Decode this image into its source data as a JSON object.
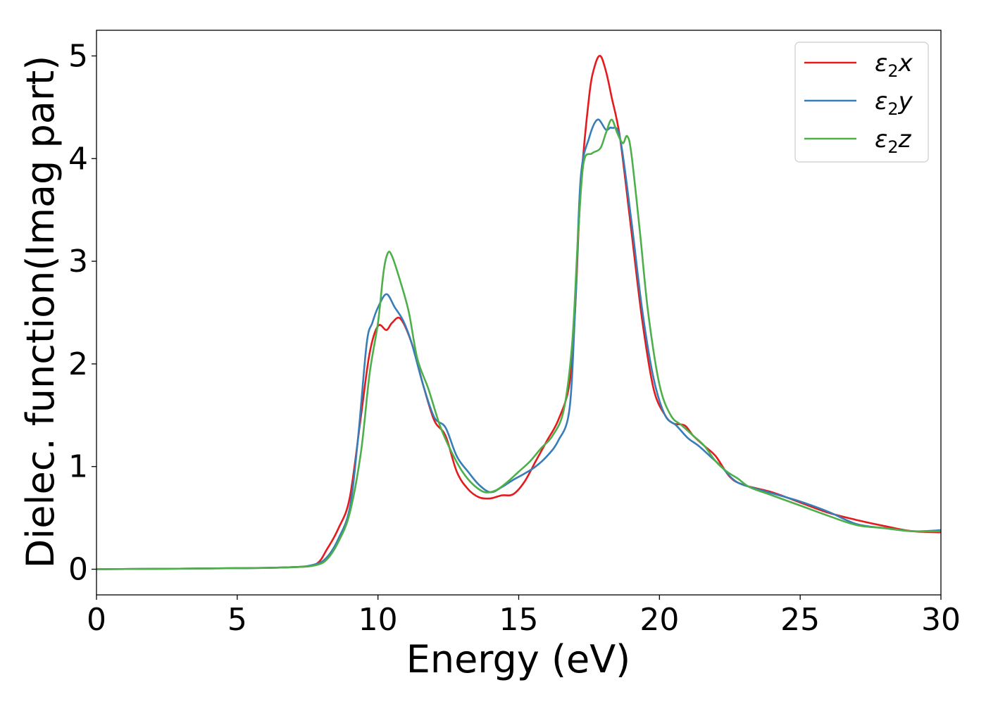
{
  "chart_data": {
    "type": "line",
    "title": "",
    "xlabel": "Energy (eV)",
    "ylabel": "Dielec. function(Imag part)",
    "xlim": [
      0,
      30
    ],
    "ylim": [
      -0.25,
      5.25
    ],
    "xticks": [
      0,
      5,
      10,
      15,
      20,
      25,
      30
    ],
    "xtick_labels": [
      "0",
      "5",
      "10",
      "15",
      "20",
      "25",
      "30"
    ],
    "yticks": [
      0,
      1,
      2,
      3,
      4,
      5
    ],
    "ytick_labels": [
      "0",
      "1",
      "2",
      "3",
      "4",
      "5"
    ],
    "grid": false,
    "legend_position": "top-right",
    "series": [
      {
        "name": "ε₂x",
        "legend_main": "ε",
        "legend_sub": "2",
        "legend_suffix": "x",
        "color": "#e41a1c",
        "x": [
          0,
          5,
          7,
          7.8,
          8.2,
          8.6,
          9.0,
          9.4,
          9.7,
          10.0,
          10.3,
          10.5,
          10.8,
          11.2,
          11.6,
          12.0,
          12.4,
          12.8,
          13.2,
          13.6,
          14.0,
          14.4,
          14.8,
          15.2,
          15.6,
          16.0,
          16.4,
          16.8,
          17.0,
          17.2,
          17.5,
          17.7,
          17.9,
          18.1,
          18.3,
          18.6,
          19.0,
          19.4,
          19.8,
          20.2,
          20.5,
          20.9,
          21.2,
          21.6,
          22.0,
          22.5,
          23.0,
          24.0,
          25.0,
          26.0,
          27.0,
          28.0,
          29.0,
          30.0
        ],
        "y": [
          0,
          0.01,
          0.02,
          0.05,
          0.2,
          0.4,
          0.7,
          1.5,
          2.1,
          2.37,
          2.33,
          2.4,
          2.44,
          2.2,
          1.8,
          1.45,
          1.3,
          0.95,
          0.78,
          0.7,
          0.69,
          0.72,
          0.73,
          0.85,
          1.05,
          1.25,
          1.45,
          1.8,
          2.5,
          3.7,
          4.6,
          4.9,
          5.0,
          4.85,
          4.6,
          4.2,
          3.3,
          2.4,
          1.75,
          1.5,
          1.42,
          1.4,
          1.3,
          1.2,
          1.1,
          0.9,
          0.82,
          0.75,
          0.65,
          0.55,
          0.48,
          0.42,
          0.37,
          0.36
        ]
      },
      {
        "name": "ε₂y",
        "legend_main": "ε",
        "legend_sub": "2",
        "legend_suffix": "y",
        "color": "#377eb8",
        "x": [
          0,
          5,
          7,
          7.8,
          8.2,
          8.6,
          9.0,
          9.3,
          9.6,
          9.8,
          10.0,
          10.3,
          10.6,
          10.9,
          11.2,
          11.6,
          12.0,
          12.4,
          12.8,
          13.2,
          13.6,
          14.0,
          14.4,
          14.8,
          15.2,
          15.6,
          16.0,
          16.4,
          16.8,
          17.0,
          17.2,
          17.5,
          17.8,
          18.1,
          18.3,
          18.6,
          19.0,
          19.4,
          19.8,
          20.2,
          20.6,
          21.0,
          21.4,
          21.8,
          22.2,
          22.6,
          23.0,
          24.0,
          25.0,
          26.0,
          27.0,
          28.0,
          29.0,
          30.0
        ],
        "y": [
          0,
          0.01,
          0.02,
          0.05,
          0.12,
          0.3,
          0.6,
          1.3,
          2.2,
          2.4,
          2.55,
          2.68,
          2.55,
          2.42,
          2.2,
          1.8,
          1.48,
          1.38,
          1.1,
          0.95,
          0.82,
          0.75,
          0.8,
          0.87,
          0.93,
          1.0,
          1.1,
          1.25,
          1.55,
          2.5,
          3.8,
          4.2,
          4.38,
          4.28,
          4.3,
          4.2,
          3.4,
          2.5,
          1.85,
          1.5,
          1.4,
          1.28,
          1.2,
          1.1,
          1.0,
          0.88,
          0.82,
          0.74,
          0.66,
          0.56,
          0.44,
          0.4,
          0.37,
          0.38
        ]
      },
      {
        "name": "ε₂z",
        "legend_main": "ε",
        "legend_sub": "2",
        "legend_suffix": "z",
        "color": "#4daf4a",
        "x": [
          0,
          5,
          7,
          7.8,
          8.2,
          8.6,
          9.0,
          9.4,
          9.7,
          10.0,
          10.2,
          10.35,
          10.5,
          10.8,
          11.1,
          11.4,
          11.8,
          12.2,
          12.6,
          13.0,
          13.4,
          13.8,
          14.2,
          14.6,
          15.0,
          15.4,
          15.8,
          16.2,
          16.6,
          16.9,
          17.1,
          17.3,
          17.6,
          17.9,
          18.1,
          18.3,
          18.5,
          18.7,
          18.85,
          19.0,
          19.3,
          19.6,
          20.0,
          20.4,
          20.8,
          21.2,
          21.6,
          22.0,
          22.4,
          22.8,
          23.2,
          24.0,
          25.0,
          26.0,
          27.0,
          28.0,
          29.0,
          30.0
        ],
        "y": [
          0,
          0.01,
          0.02,
          0.04,
          0.1,
          0.27,
          0.55,
          1.15,
          1.9,
          2.4,
          2.9,
          3.08,
          3.05,
          2.8,
          2.5,
          2.05,
          1.75,
          1.4,
          1.15,
          0.95,
          0.82,
          0.75,
          0.77,
          0.85,
          0.95,
          1.05,
          1.18,
          1.3,
          1.55,
          2.2,
          3.2,
          3.95,
          4.05,
          4.1,
          4.25,
          4.38,
          4.25,
          4.15,
          4.22,
          4.05,
          3.3,
          2.5,
          1.8,
          1.5,
          1.4,
          1.3,
          1.2,
          1.05,
          0.95,
          0.88,
          0.8,
          0.72,
          0.62,
          0.52,
          0.43,
          0.4,
          0.37,
          0.37
        ]
      }
    ]
  }
}
